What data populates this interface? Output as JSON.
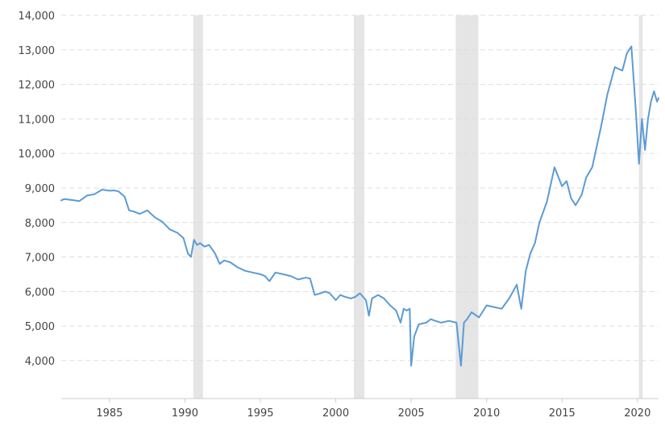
{
  "chart_data": {
    "type": "line",
    "title": "",
    "xlabel": "",
    "ylabel": "",
    "xlim": [
      1981.8,
      2021.4
    ],
    "ylim": [
      2900,
      14000
    ],
    "x_ticks": [
      1985,
      1990,
      1995,
      2000,
      2005,
      2010,
      2015,
      2020
    ],
    "x_tick_labels": [
      "1985",
      "1990",
      "1995",
      "2000",
      "2005",
      "2010",
      "2015",
      "2020"
    ],
    "y_ticks": [
      4000,
      5000,
      6000,
      7000,
      8000,
      9000,
      10000,
      11000,
      12000,
      13000,
      14000
    ],
    "y_tick_labels": [
      "4,000",
      "5,000",
      "6,000",
      "7,000",
      "8,000",
      "9,000",
      "10,000",
      "11,000",
      "12,000",
      "13,000",
      "14,000"
    ],
    "grid": "horizontal dashed",
    "legend": "none",
    "recession_bands": [
      {
        "start": 1990.55,
        "end": 1991.2
      },
      {
        "start": 2001.2,
        "end": 2001.9
      },
      {
        "start": 2007.95,
        "end": 2009.45
      },
      {
        "start": 2020.1,
        "end": 2020.35
      }
    ],
    "colors": {
      "line": "#5b9bd5",
      "band": "#e5e5e5",
      "grid": "#dddddd",
      "axis": "#cccccc",
      "label": "#444444"
    },
    "series": [
      {
        "x": [
          1981.8,
          1982.0,
          1982.5,
          1983.0,
          1983.5,
          1984.0,
          1984.5,
          1985.0,
          1985.3,
          1985.6,
          1986.0,
          1986.3,
          1986.6,
          1987.0,
          1987.5,
          1988.0,
          1988.5,
          1989.0,
          1989.5,
          1989.9,
          1990.0,
          1990.2,
          1990.4,
          1990.6,
          1990.8,
          1991.0,
          1991.3,
          1991.6,
          1992.0,
          1992.3,
          1992.6,
          1993.0,
          1993.5,
          1994.0,
          1994.5,
          1995.0,
          1995.3,
          1995.6,
          1996.0,
          1996.5,
          1997.0,
          1997.5,
          1998.0,
          1998.3,
          1998.6,
          1999.0,
          1999.3,
          1999.6,
          2000.0,
          2000.3,
          2000.6,
          2001.0,
          2001.3,
          2001.6,
          2002.0,
          2002.2,
          2002.4,
          2002.8,
          2003.2,
          2003.6,
          2004.0,
          2004.3,
          2004.5,
          2004.7,
          2004.9,
          2005.0,
          2005.2,
          2005.5,
          2006.0,
          2006.3,
          2006.6,
          2007.0,
          2007.5,
          2008.0,
          2008.3,
          2008.5,
          2008.7,
          2009.0,
          2009.5,
          2010.0,
          2010.5,
          2011.0,
          2011.5,
          2012.0,
          2012.3,
          2012.6,
          2012.9,
          2013.2,
          2013.5,
          2014.0,
          2014.5,
          2015.0,
          2015.3,
          2015.6,
          2015.9,
          2016.3,
          2016.6,
          2017.0,
          2017.3,
          2017.6,
          2018.0,
          2018.5,
          2019.0,
          2019.3,
          2019.6,
          2019.9,
          2020.1,
          2020.3,
          2020.5,
          2020.7,
          2020.9,
          2021.1,
          2021.3,
          2021.4
        ],
        "y": [
          8640,
          8680,
          8650,
          8620,
          8780,
          8820,
          8950,
          8920,
          8930,
          8900,
          8750,
          8350,
          8320,
          8250,
          8350,
          8150,
          8020,
          7800,
          7700,
          7550,
          7400,
          7100,
          7000,
          7500,
          7350,
          7400,
          7300,
          7350,
          7100,
          6800,
          6900,
          6850,
          6700,
          6600,
          6550,
          6500,
          6450,
          6300,
          6550,
          6500,
          6450,
          6350,
          6400,
          6380,
          5900,
          5950,
          6000,
          5950,
          5750,
          5900,
          5850,
          5800,
          5850,
          5950,
          5750,
          5300,
          5800,
          5900,
          5800,
          5600,
          5450,
          5100,
          5500,
          5450,
          5500,
          3850,
          4700,
          5050,
          5100,
          5200,
          5150,
          5100,
          5150,
          5100,
          3850,
          5100,
          5200,
          5400,
          5250,
          5600,
          5550,
          5500,
          5800,
          6200,
          5500,
          6600,
          7100,
          7400,
          8000,
          8600,
          9600,
          9050,
          9200,
          8700,
          8500,
          8800,
          9300,
          9600,
          10200,
          10800,
          11700,
          12500,
          12400,
          12900,
          13100,
          11200,
          9700,
          11000,
          10100,
          11000,
          11500,
          11800,
          11500,
          11600
        ]
      }
    ]
  }
}
